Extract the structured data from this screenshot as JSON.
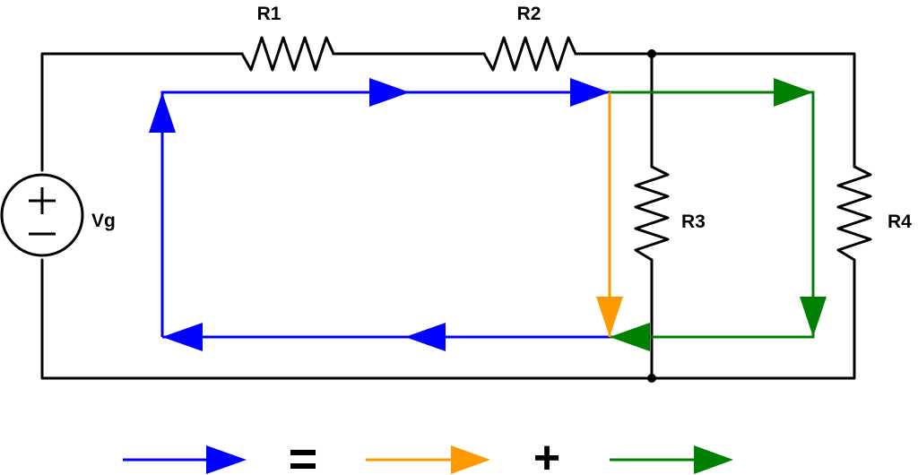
{
  "labels": {
    "r1": "R1",
    "r2": "R2",
    "r3": "R3",
    "r4": "R4",
    "source": "Vg"
  },
  "legend": {
    "equals": "=",
    "plus": "+"
  },
  "colors": {
    "wire": "#000000",
    "total_current": "#0000ff",
    "r3_branch_current": "#ff9900",
    "r4_branch_current": "#008000"
  },
  "icons": {
    "source": "voltage-source-icon",
    "resistor": "resistor-zigzag-icon",
    "arrow": "arrowhead-icon"
  }
}
